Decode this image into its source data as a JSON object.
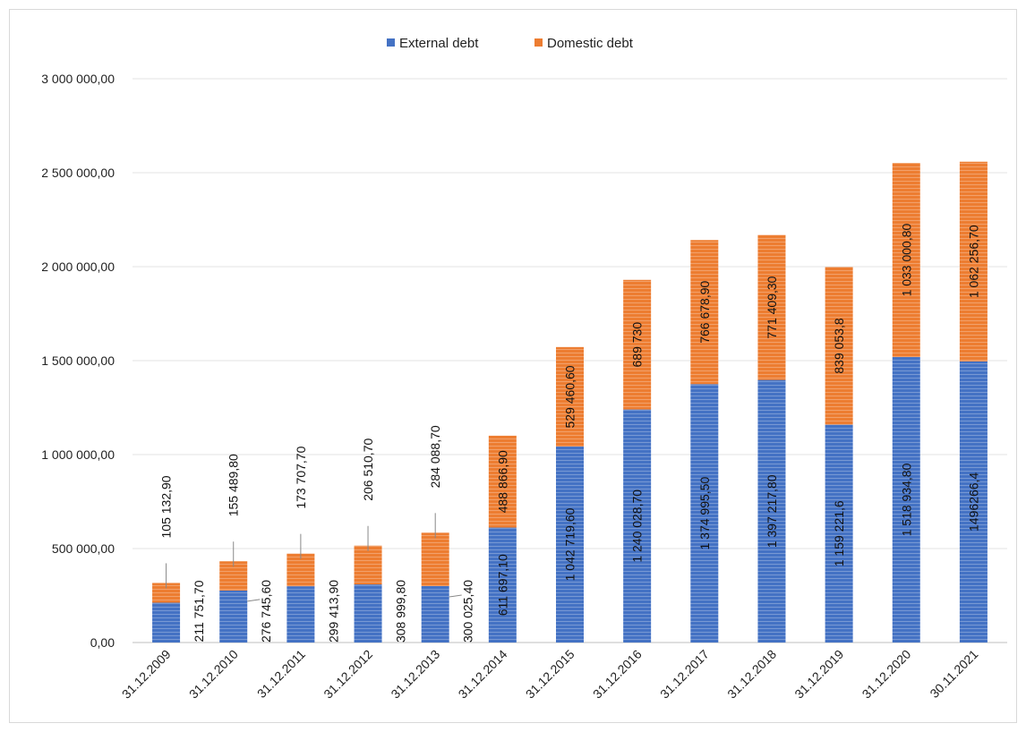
{
  "chart_data": {
    "type": "bar",
    "stacked": true,
    "categories": [
      "31.12.2009",
      "31.12.2010",
      "31.12.2011",
      "31.12.2012",
      "31.12.2013",
      "31.12.2014",
      "31.12.2015",
      "31.12.2016",
      "31.12.2017",
      "31.12.2018",
      "31.12.2019",
      "31.12.2020",
      "30.11.2021"
    ],
    "series": [
      {
        "name": "External debt",
        "color": "#4472C4",
        "values": [
          211751.7,
          276745.6,
          299413.9,
          308999.8,
          300025.4,
          611697.1,
          1042719.6,
          1240028.7,
          1374995.5,
          1397217.8,
          1159221.6,
          1518934.8,
          1496266.4
        ],
        "labels": [
          "211 751,70",
          "276 745,60",
          "299 413,90",
          "308 999,80",
          "300 025,40",
          "611 697,10",
          "1 042 719,60",
          "1 240 028,70",
          "1 374 995,50",
          "1 397 217,80",
          "1 159 221,6",
          "1 518 934,80",
          "1496266,4"
        ]
      },
      {
        "name": "Domestic debt",
        "color": "#ED7D31",
        "values": [
          105132.9,
          155489.8,
          173707.7,
          206510.7,
          284088.7,
          488866.9,
          529460.6,
          689730,
          766678.9,
          771409.3,
          839053.8,
          1033000.8,
          1062256.7
        ],
        "labels": [
          "105 132,90",
          "155 489,80",
          "173 707,70",
          "206 510,70",
          "284 088,70",
          "488 866,90",
          "529 460,60",
          "689 730",
          "766 678,90",
          "771 409,30",
          "839 053,8",
          "1 033 000,80",
          "1 062 256,70"
        ]
      }
    ],
    "ylim": [
      0,
      3000000
    ],
    "yticks": [
      0,
      500000,
      1000000,
      1500000,
      2000000,
      2500000,
      3000000
    ],
    "ytick_labels": [
      "0,00",
      "500 000,00",
      "1 000 000,00",
      "1 500 000,00",
      "2 000 000,00",
      "2 500 000,00",
      "3 000 000,00"
    ],
    "grid": true,
    "legend_position": "top-center"
  }
}
